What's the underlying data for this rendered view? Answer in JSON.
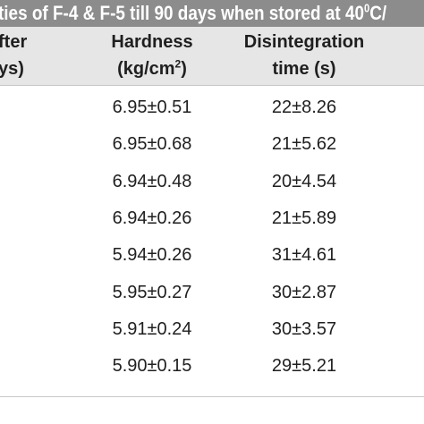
{
  "title": {
    "before_sup": "ties of F-4 & F-5 till 90 days when stored at 40",
    "sup": "0",
    "after_sup": "C/"
  },
  "headers": {
    "days_line1": "fter",
    "days_line2": "ys)",
    "hardness_line1": "Hardness",
    "hardness_line2_pre": "(kg/cm",
    "hardness_line2_sup": "2",
    "hardness_line2_post": ")",
    "disintegration_line1": "Disintegration",
    "disintegration_line2": "time (s)"
  },
  "rows": [
    {
      "hardness": "6.95±0.51",
      "disintegration": "22±8.26"
    },
    {
      "hardness": "6.95±0.68",
      "disintegration": "21±5.62"
    },
    {
      "hardness": "6.94±0.48",
      "disintegration": "20±4.54"
    },
    {
      "hardness": "6.94±0.26",
      "disintegration": "21±5.89"
    },
    {
      "hardness": "5.94±0.26",
      "disintegration": "31±4.61"
    },
    {
      "hardness": "5.95±0.27",
      "disintegration": "30±2.87"
    },
    {
      "hardness": "5.91±0.24",
      "disintegration": "30±3.57"
    },
    {
      "hardness": "5.90±0.15",
      "disintegration": "29±5.21"
    }
  ]
}
